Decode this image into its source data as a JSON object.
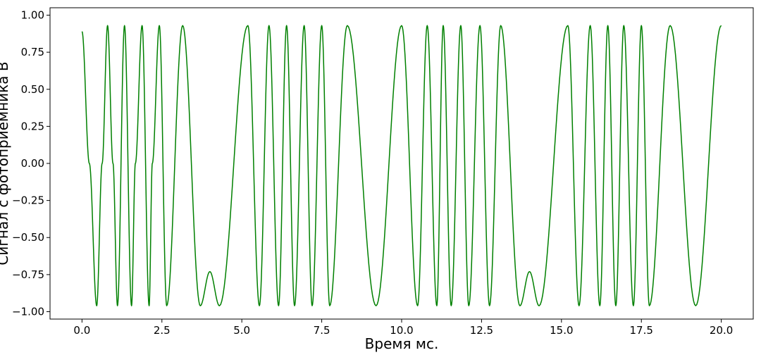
{
  "chart_data": {
    "type": "line",
    "title": "",
    "xlabel": "Время мс.",
    "ylabel": "Сигнал с фотоприемника В",
    "xlim": [
      -1.0,
      21.0
    ],
    "ylim": [
      -1.05,
      1.05
    ],
    "xticks": [
      0.0,
      2.5,
      5.0,
      7.5,
      10.0,
      12.5,
      15.0,
      17.5,
      20.0
    ],
    "xtick_labels": [
      "0.0",
      "2.5",
      "5.0",
      "7.5",
      "10.0",
      "12.5",
      "15.0",
      "17.5",
      "20.0"
    ],
    "yticks": [
      -1.0,
      -0.75,
      -0.5,
      -0.25,
      0.0,
      0.25,
      0.5,
      0.75,
      1.0
    ],
    "ytick_labels": [
      "−1.00",
      "−0.75",
      "−0.50",
      "−0.25",
      "0.00",
      "0.25",
      "0.50",
      "0.75",
      "1.00"
    ],
    "grid": false,
    "series": [
      {
        "color": "#008000",
        "x": [
          0.0,
          0.23,
          0.46,
          0.63,
          0.8,
          0.97,
          1.11,
          1.33,
          1.55,
          1.67,
          1.88,
          2.1,
          2.2,
          2.42,
          2.65,
          3.15,
          3.7,
          4.0,
          4.3,
          5.19,
          5.55,
          5.85,
          6.15,
          6.4,
          6.65,
          6.95,
          7.2,
          7.5,
          7.75,
          8.3,
          9.2,
          10.0,
          10.5,
          10.8,
          11.1,
          11.3,
          11.55,
          11.85,
          12.1,
          12.45,
          12.75,
          13.1,
          13.7,
          14.0,
          14.3,
          15.2,
          15.55,
          15.9,
          16.2,
          16.45,
          16.7,
          16.95,
          17.25,
          17.5,
          17.75,
          18.4,
          19.2,
          20.0
        ],
        "y": [
          0.89,
          0.0,
          -0.96,
          0.0,
          0.93,
          0.0,
          -0.96,
          0.93,
          -0.96,
          0.0,
          0.93,
          -0.96,
          0.0,
          0.93,
          -0.96,
          0.93,
          -0.96,
          -0.73,
          -0.96,
          0.93,
          -0.96,
          0.93,
          -0.96,
          0.93,
          -0.96,
          0.93,
          -0.96,
          0.93,
          -0.96,
          0.93,
          -0.96,
          0.93,
          -0.96,
          0.93,
          -0.96,
          0.93,
          -0.96,
          0.93,
          -0.96,
          0.93,
          -0.96,
          0.93,
          -0.96,
          -0.73,
          -0.96,
          0.93,
          -0.96,
          0.93,
          -0.96,
          0.93,
          -0.96,
          0.93,
          -0.96,
          0.93,
          -0.96,
          0.93,
          -0.96,
          0.93
        ]
      }
    ]
  }
}
